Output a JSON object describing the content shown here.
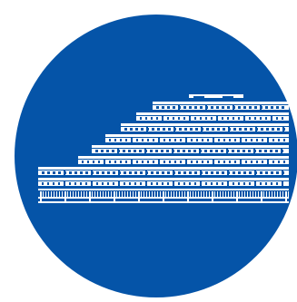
{
  "logo": {
    "icon": "terraced-building-icon",
    "background_color": "#ffffff",
    "circle_color": "#0554a8",
    "building_color": "#ffffff"
  }
}
